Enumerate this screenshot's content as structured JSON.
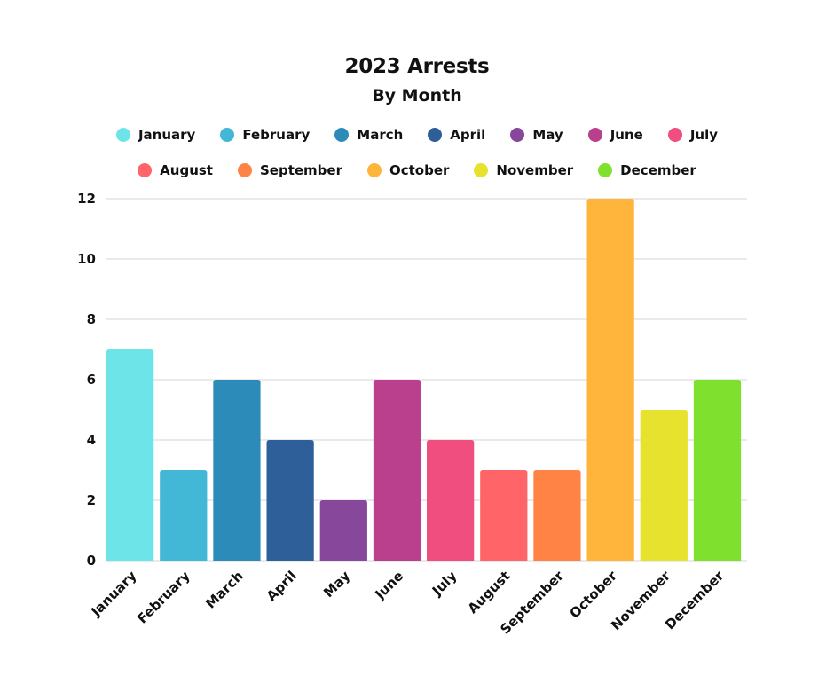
{
  "chart_data": {
    "type": "bar",
    "title": "2023 Arrests",
    "subtitle": "By Month",
    "xlabel": "",
    "ylabel": "",
    "categories": [
      "January",
      "February",
      "March",
      "April",
      "May",
      "June",
      "July",
      "August",
      "September",
      "October",
      "November",
      "December"
    ],
    "values": [
      7,
      3,
      6,
      4,
      2,
      6,
      4,
      3,
      3,
      12,
      5,
      6
    ],
    "colors": [
      "#6DE5E8",
      "#42B7D6",
      "#2D8BBA",
      "#2E5F99",
      "#87479B",
      "#BA3F8D",
      "#EF4E7F",
      "#FF6468",
      "#FF8345",
      "#FFB53C",
      "#E6E22E",
      "#80E02E"
    ],
    "ylim": [
      0,
      12
    ],
    "yticks": [
      0,
      2,
      4,
      6,
      8,
      10,
      12
    ],
    "grid": true,
    "legend": "top-center"
  }
}
